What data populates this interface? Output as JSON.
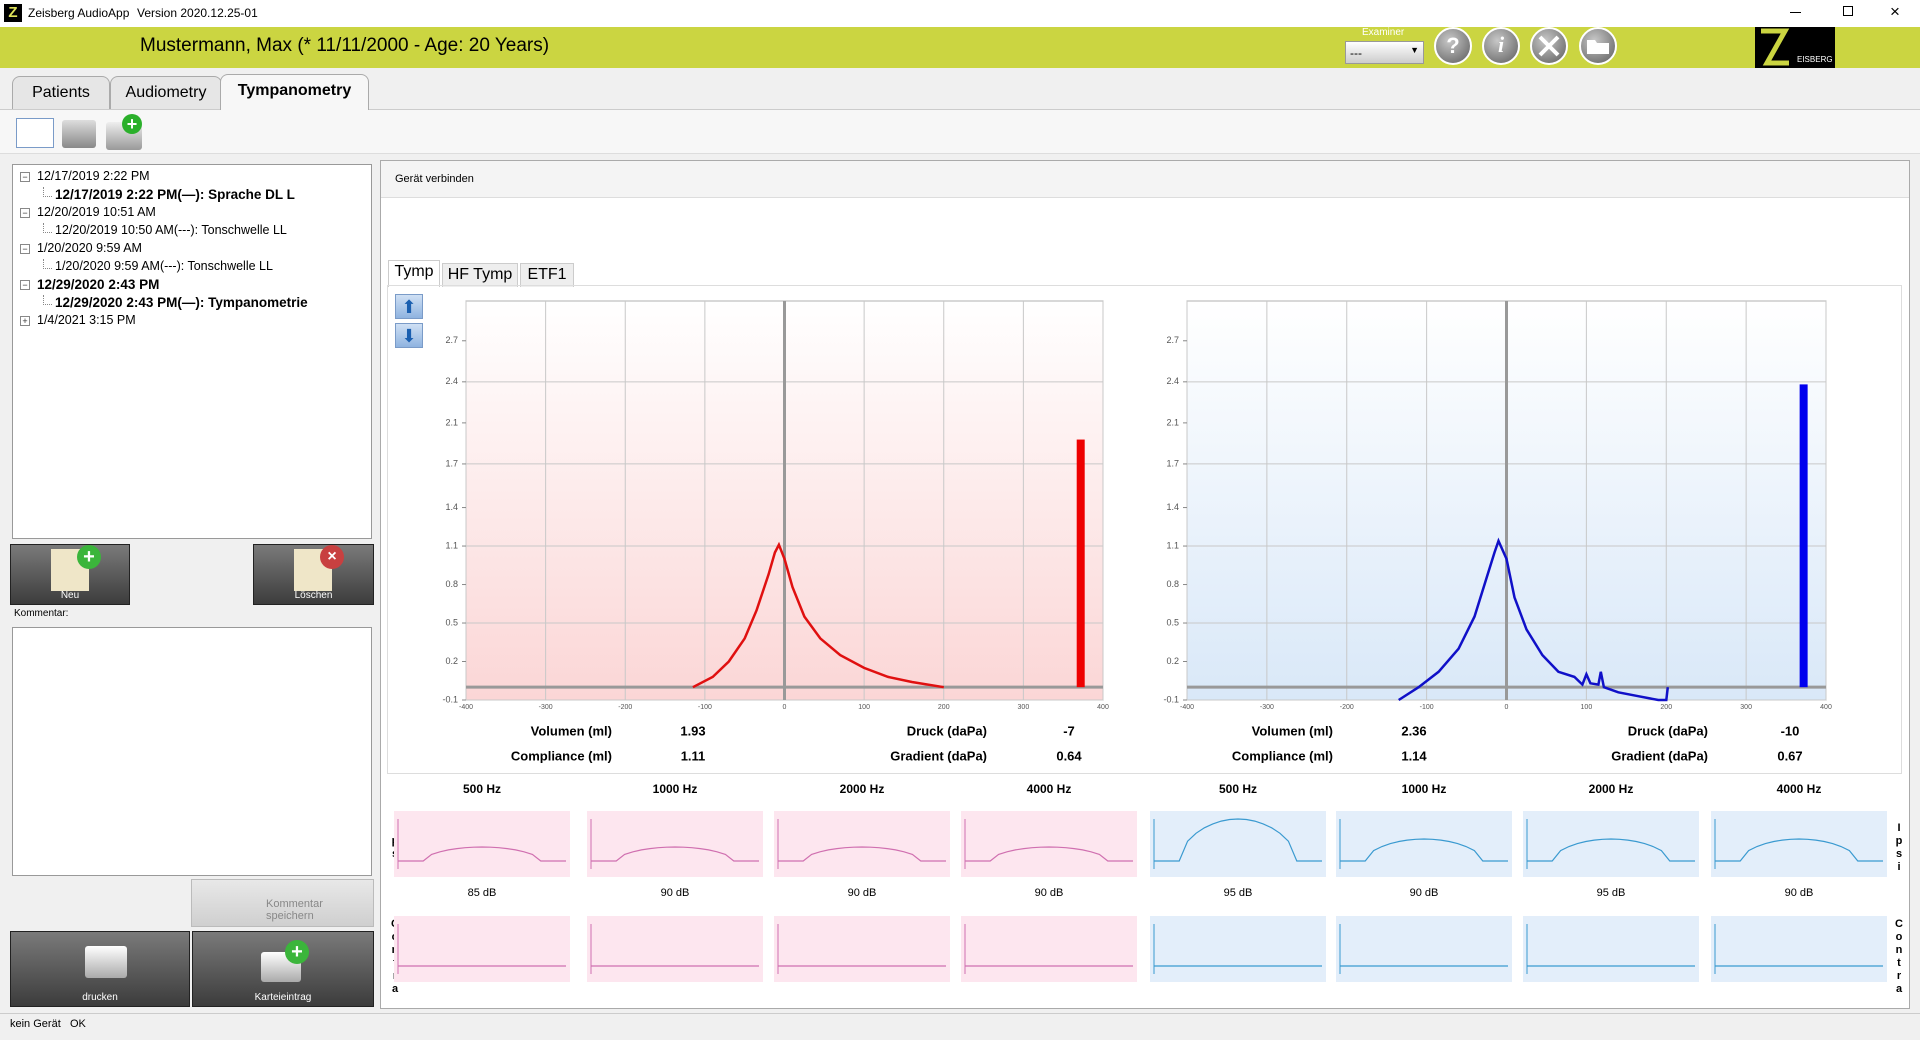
{
  "app": {
    "title": "Zeisberg AudioApp",
    "version": "Version 2020.12.25-01"
  },
  "header": {
    "patient": "Mustermann, Max (* 11/11/2000 - Age: 20 Years)",
    "examiner_label": "Examiner",
    "examiner_value": "---",
    "logo_text": "EISBERG"
  },
  "tabs": [
    "Patients",
    "Audiometry",
    "Tympanometry"
  ],
  "active_tab": 2,
  "tree": [
    {
      "text": "12/17/2019 2:22 PM",
      "level": 0,
      "bold": false,
      "expanded": true
    },
    {
      "text": "12/17/2019 2:22 PM(—): Sprache DL L",
      "level": 1,
      "bold": true
    },
    {
      "text": "12/20/2019 10:51 AM",
      "level": 0,
      "bold": false,
      "expanded": true
    },
    {
      "text": "12/20/2019 10:50 AM(---): Tonschwelle LL",
      "level": 1,
      "bold": false
    },
    {
      "text": "1/20/2020 9:59 AM",
      "level": 0,
      "bold": false,
      "expanded": true
    },
    {
      "text": "1/20/2020 9:59 AM(---): Tonschwelle LL",
      "level": 1,
      "bold": false
    },
    {
      "text": "12/29/2020 2:43 PM",
      "level": 0,
      "bold": true,
      "expanded": true
    },
    {
      "text": "12/29/2020 2:43 PM(—): Tympanometrie",
      "level": 1,
      "bold": true
    },
    {
      "text": "1/4/2021 3:15 PM",
      "level": 0,
      "bold": false,
      "expanded": false
    }
  ],
  "buttons": {
    "new": "Neu",
    "delete": "Löschen",
    "comment_label": "Kommentar:",
    "save_comment": "Kommentar speichern",
    "print": "drucken",
    "record": "Karteieintrag"
  },
  "connect": "Gerät verbinden",
  "subtabs": [
    "Tymp",
    "HF Tymp",
    "ETF1"
  ],
  "chart_data": [
    {
      "type": "line",
      "color_scheme": "red",
      "x": [
        -115,
        -90,
        -70,
        -50,
        -35,
        -20,
        -12,
        -7,
        0,
        10,
        25,
        45,
        70,
        100,
        130,
        160,
        200
      ],
      "series": [
        {
          "color": "#e01010",
          "values": [
            0,
            0.08,
            0.2,
            0.38,
            0.6,
            0.88,
            1.05,
            1.11,
            1.0,
            0.78,
            0.55,
            0.38,
            0.25,
            0.15,
            0.08,
            0.04,
            0.0
          ]
        }
      ],
      "bar_color": "#ee0000",
      "background": [
        "#ffffff",
        "#fbd6d6"
      ],
      "xlim": [
        -400,
        400
      ],
      "xticks": [
        -400,
        -300,
        -200,
        -100,
        0,
        100,
        200,
        300,
        400
      ],
      "ylim": [
        -0.1,
        3.01
      ],
      "yticks": [
        -0.1,
        0.2,
        0.5,
        0.8,
        1.1,
        1.4,
        {
          "value": 1.74,
          "label": "1.7"
        },
        {
          "value": 2.06,
          "label": "2.1"
        },
        {
          "value": 2.38,
          "label": "2.4"
        },
        2.7
      ],
      "ygrid_step": 2,
      "stats": [
        {
          "label": "Volumen (ml)",
          "value": 1.93
        },
        {
          "label": "Compliance (ml)",
          "value": 1.11
        },
        {
          "label": "Druck (daPa)",
          "value": -7
        },
        {
          "label": "Gradient (daPa)",
          "value": 0.64
        }
      ]
    },
    {
      "type": "line",
      "color_scheme": "blue",
      "x": [
        -135,
        -110,
        -85,
        -60,
        -40,
        -25,
        -15,
        -10,
        0,
        10,
        25,
        45,
        65,
        85,
        95,
        100,
        105,
        115,
        118,
        122,
        140,
        165,
        190,
        200,
        202
      ],
      "series": [
        {
          "color": "#1010c8",
          "values": [
            -0.1,
            0.0,
            0.12,
            0.3,
            0.55,
            0.85,
            1.05,
            1.14,
            1.0,
            0.7,
            0.45,
            0.25,
            0.12,
            0.08,
            0.02,
            0.1,
            0.03,
            0.02,
            0.12,
            0.0,
            -0.04,
            -0.07,
            -0.1,
            -0.1,
            0.0
          ]
        }
      ],
      "bar_color": "#0000ee",
      "background": [
        "#ffffff",
        "#d9e8f8"
      ],
      "xlim": [
        -400,
        400
      ],
      "xticks": [
        -400,
        -300,
        -200,
        -100,
        0,
        100,
        200,
        300,
        400
      ],
      "ylim": [
        -0.1,
        3.01
      ],
      "yticks": [
        -0.1,
        0.2,
        0.5,
        0.8,
        1.1,
        1.4,
        {
          "value": 1.74,
          "label": "1.7"
        },
        {
          "value": 2.06,
          "label": "2.1"
        },
        {
          "value": 2.38,
          "label": "2.4"
        },
        2.7
      ],
      "ygrid_step": 2,
      "stats": [
        {
          "label": "Volumen (ml)",
          "value": 2.36
        },
        {
          "label": "Compliance (ml)",
          "value": 1.14
        },
        {
          "label": "Druck (daPa)",
          "value": -10
        },
        {
          "label": "Gradient (daPa)",
          "value": 0.67
        }
      ]
    }
  ],
  "reflex": {
    "frequencies": [
      "500 Hz",
      "1000 Hz",
      "2000 Hz",
      "4000 Hz",
      "500 Hz",
      "1000 Hz",
      "2000 Hz",
      "4000 Hz"
    ],
    "levels": [
      "85 dB",
      "90 dB",
      "90 dB",
      "90 dB",
      "95 dB",
      "90 dB",
      "95 dB",
      "90 dB"
    ],
    "ipsi": "Ipsi",
    "contra": "Contra"
  },
  "status": [
    "kein Gerät",
    "OK"
  ]
}
